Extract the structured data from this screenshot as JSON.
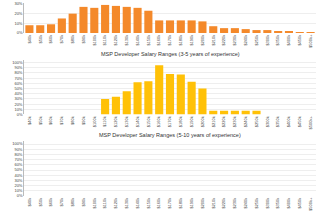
{
  "chart_data": [
    {
      "type": "bar",
      "categories": [
        "$40k",
        "$50k",
        "$60k",
        "$70k",
        "$80k",
        "$90k",
        "$100k",
        "$110k",
        "$120k",
        "$130k",
        "$140k",
        "$150k",
        "$160k",
        "$170k",
        "$180k",
        "$190k",
        "$200k",
        "$210k",
        "$220k",
        "$230k",
        "$240k",
        "$250k",
        "$300k",
        "$350k",
        "$400k",
        "$450k",
        "$500k+"
      ],
      "values": [
        0.08,
        0.08,
        0.09,
        0.15,
        0.2,
        0.27,
        0.26,
        0.29,
        0.28,
        0.27,
        0.26,
        0.23,
        0.13,
        0.13,
        0.13,
        0.13,
        0.12,
        0.07,
        0.05,
        0.05,
        0.04,
        0.03,
        0.03,
        0.02,
        0.02,
        0.01,
        0.01
      ],
      "color": "#F4892A",
      "ylim": [
        0,
        0.31
      ],
      "yticks": [
        {
          "value": 0.0,
          "label": "0%"
        },
        {
          "value": 0.1,
          "label": "10%"
        },
        {
          "value": 0.2,
          "label": "20%"
        },
        {
          "value": 0.3,
          "label": "30%"
        }
      ],
      "grid": true
    },
    {
      "type": "bar",
      "title": "MSP Developer Salary Ranges (3-5 years of experience)",
      "categories": [
        "$40k",
        "$50k",
        "$60k",
        "$70k",
        "$80k",
        "$90k",
        "$100k",
        "$110k",
        "$120k",
        "$130k",
        "$140k",
        "$150k",
        "$160k",
        "$170k",
        "$180k",
        "$190k",
        "$200k",
        "$210k",
        "$220k",
        "$230k",
        "$240k",
        "$250k",
        "$300k",
        "$350k",
        "$400k",
        "$450k",
        "$500k+"
      ],
      "values": [
        0.0,
        0.0,
        0.0,
        0.0,
        0.0,
        0.0,
        0.0,
        0.3,
        0.34,
        0.45,
        0.62,
        0.64,
        0.95,
        0.78,
        0.77,
        0.63,
        0.5,
        0.07,
        0.07,
        0.07,
        0.07,
        0.07,
        0.0,
        0.0,
        0.0,
        0.0,
        0.0
      ],
      "color": "#FFC107",
      "ylim": [
        0,
        1.05
      ],
      "yticks": [
        {
          "value": 0.0,
          "label": "0%"
        },
        {
          "value": 0.1,
          "label": "10%"
        },
        {
          "value": 0.2,
          "label": "20%"
        },
        {
          "value": 0.3,
          "label": "30%"
        },
        {
          "value": 0.4,
          "label": "40%"
        },
        {
          "value": 0.5,
          "label": "50%"
        },
        {
          "value": 0.6,
          "label": "60%"
        },
        {
          "value": 0.7,
          "label": "70%"
        },
        {
          "value": 0.8,
          "label": "80%"
        },
        {
          "value": 0.9,
          "label": "90%"
        },
        {
          "value": 1.0,
          "label": "100%"
        }
      ],
      "grid": true
    },
    {
      "type": "bar",
      "title": "MSP Developer Salary Ranges (5-10 years of experience)",
      "categories": [
        "$40k",
        "$50k",
        "$60k",
        "$70k",
        "$80k",
        "$90k",
        "$100k",
        "$110k",
        "$120k",
        "$130k",
        "$140k",
        "$150k",
        "$160k",
        "$170k",
        "$180k",
        "$190k",
        "$200k",
        "$210k",
        "$220k",
        "$230k",
        "$240k",
        "$250k",
        "$300k",
        "$350k",
        "$400k",
        "$450k",
        "$500k+"
      ],
      "values": [
        0.0,
        0.0,
        0.0,
        0.0,
        0.0,
        0.0,
        0.0,
        0.0,
        0.0,
        0.0,
        0.0,
        0.0,
        0.0,
        0.0,
        0.0,
        0.0,
        0.0,
        0.0,
        0.0,
        0.0,
        0.0,
        0.0,
        0.0,
        0.0,
        0.0,
        0.0,
        0.0
      ],
      "color": "#FFC107",
      "ylim": [
        0,
        1.05
      ],
      "yticks": [
        {
          "value": 0.0,
          "label": "0%"
        },
        {
          "value": 0.1,
          "label": "10%"
        },
        {
          "value": 0.2,
          "label": "20%"
        },
        {
          "value": 0.3,
          "label": "30%"
        },
        {
          "value": 0.4,
          "label": "40%"
        },
        {
          "value": 0.5,
          "label": "50%"
        },
        {
          "value": 0.6,
          "label": "60%"
        },
        {
          "value": 0.7,
          "label": "70%"
        },
        {
          "value": 0.8,
          "label": "80%"
        },
        {
          "value": 0.9,
          "label": "90%"
        },
        {
          "value": 1.0,
          "label": "100%"
        }
      ],
      "grid": true
    }
  ]
}
